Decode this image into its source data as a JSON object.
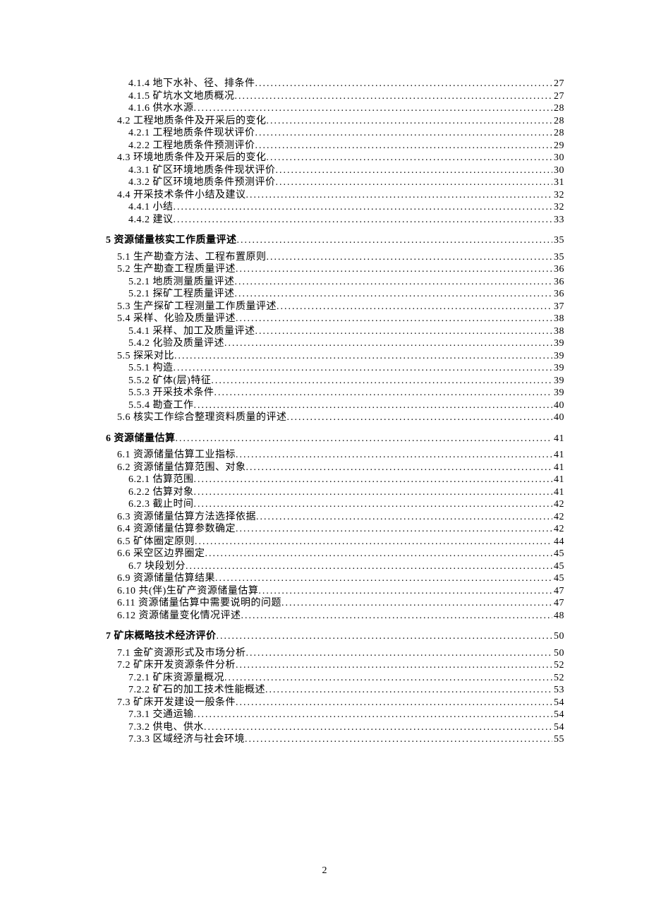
{
  "page_number": "2",
  "entries": [
    {
      "level": 3,
      "label": "4.1.4 地下水补、径、排条件",
      "page": "27"
    },
    {
      "level": 3,
      "label": "4.1.5 矿坑水文地质概况",
      "page": "27"
    },
    {
      "level": 3,
      "label": "4.1.6 供水水源",
      "page": "28"
    },
    {
      "level": 2,
      "label": "4.2 工程地质条件及开采后的变化",
      "page": "28"
    },
    {
      "level": 3,
      "label": "4.2.1 工程地质条件现状评价",
      "page": "28"
    },
    {
      "level": 3,
      "label": "4.2.2 工程地质条件预测评价",
      "page": "29"
    },
    {
      "level": 2,
      "label": "4.3 环境地质条件及开采后的变化",
      "page": "30"
    },
    {
      "level": 3,
      "label": "4.3.1 矿区环境地质条件现状评价",
      "page": "30"
    },
    {
      "level": 3,
      "label": "4.3.2 矿区环境地质条件预测评价",
      "page": "31"
    },
    {
      "level": 2,
      "label": "4.4 开采技术条件小结及建议",
      "page": "32"
    },
    {
      "level": 3,
      "label": "4.4.1 小结",
      "page": "32"
    },
    {
      "level": 3,
      "label": "4.4.2 建议",
      "page": "33"
    },
    {
      "level": 1,
      "label": "5 资源储量核实工作质量评述",
      "page": "35"
    },
    {
      "level": 2,
      "label": "5.1 生产勘查方法、工程布置原则",
      "page": "35"
    },
    {
      "level": 2,
      "label": "5.2 生产勘查工程质量评述",
      "page": "36"
    },
    {
      "level": 3,
      "label": "5.2.1 地质测量质量评述",
      "page": "36"
    },
    {
      "level": 3,
      "label": "5.2.1 探矿工程质量评述",
      "page": "36"
    },
    {
      "level": 2,
      "label": "5.3 生产探矿工程测量工作质量评述",
      "page": "37"
    },
    {
      "level": 2,
      "label": "5.4 采样、化验及质量评述",
      "page": "38"
    },
    {
      "level": 3,
      "label": "5.4.1 采样、加工及质量评述",
      "page": "38"
    },
    {
      "level": 3,
      "label": "5.4.2 化验及质量评述",
      "page": "39"
    },
    {
      "level": 2,
      "label": "5.5 探采对比",
      "page": "39"
    },
    {
      "level": 3,
      "label": "5.5.1 构造",
      "page": "39"
    },
    {
      "level": 3,
      "label": "5.5.2 矿体(层)特征",
      "page": "39"
    },
    {
      "level": 3,
      "label": "5.5.3 开采技术条件",
      "page": "39"
    },
    {
      "level": 3,
      "label": "5.5.4 勘查工作",
      "page": "40"
    },
    {
      "level": 2,
      "label": "5.6 核实工作综合整理资料质量的评述",
      "page": "40"
    },
    {
      "level": 1,
      "label": "6 资源储量估算",
      "page": "41"
    },
    {
      "level": 2,
      "label": "6.1 资源储量估算工业指标",
      "page": "41"
    },
    {
      "level": 2,
      "label": "6.2 资源储量估算范围、对象",
      "page": "41"
    },
    {
      "level": 3,
      "label": "6.2.1 估算范围",
      "page": "41"
    },
    {
      "level": 3,
      "label": "6.2.2 估算对象",
      "page": "41"
    },
    {
      "level": 3,
      "label": "6.2.3 截止时间",
      "page": "42"
    },
    {
      "level": 2,
      "label": "6.3 资源储量估算方法选择依据",
      "page": "42"
    },
    {
      "level": 2,
      "label": "6.4 资源储量估算参数确定",
      "page": "42"
    },
    {
      "level": 2,
      "label": "6.5 矿体圈定原则",
      "page": "44"
    },
    {
      "level": 2,
      "label": "6.6 采空区边界圈定",
      "page": "45"
    },
    {
      "level": 3,
      "label": "6.7 块段划分",
      "page": "45"
    },
    {
      "level": 2,
      "label": "6.9 资源储量估算结果",
      "page": "45"
    },
    {
      "level": 2,
      "label": "6.10 共(伴)生矿产资源储量估算",
      "page": "47"
    },
    {
      "level": 2,
      "label": "6.11 资源储量估算中需要说明的问题",
      "page": "47"
    },
    {
      "level": 2,
      "label": "6.12 资源储量变化情况评述",
      "page": "48"
    },
    {
      "level": 1,
      "label": "7 矿床概略技术经济评价",
      "page": "50"
    },
    {
      "level": 2,
      "label": "7.1 金矿资源形式及市场分析",
      "page": "50"
    },
    {
      "level": 2,
      "label": "7.2 矿床开发资源条件分析",
      "page": "52"
    },
    {
      "level": 3,
      "label": "7.2.1 矿床资源量概况",
      "page": "52"
    },
    {
      "level": 3,
      "label": "7.2.2 矿石的加工技术性能概述",
      "page": "53"
    },
    {
      "level": 2,
      "label": "7.3 矿床开发建设一般条件",
      "page": "54"
    },
    {
      "level": 3,
      "label": "7.3.1 交通运输",
      "page": "54"
    },
    {
      "level": 3,
      "label": "7.3.2 供电、供水",
      "page": "54"
    },
    {
      "level": 3,
      "label": "7.3.3 区域经济与社会环境",
      "page": "55"
    }
  ]
}
